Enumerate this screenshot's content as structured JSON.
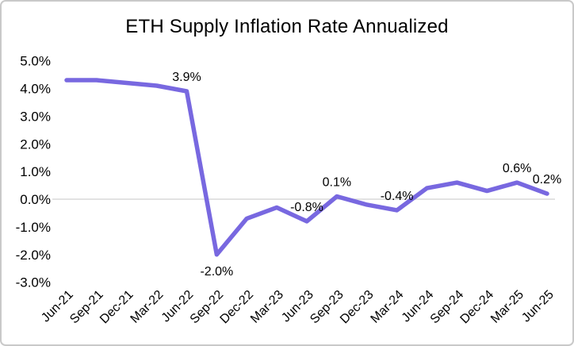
{
  "chart_data": {
    "type": "line",
    "title": "ETH Supply Inflation Rate Annualized",
    "xlabel": "",
    "ylabel": "",
    "unit": "%",
    "legend": "none",
    "grid": "zero-line-only",
    "ylim": [
      -3.0,
      5.0
    ],
    "y_ticks": [
      "5.0%",
      "4.0%",
      "3.0%",
      "2.0%",
      "1.0%",
      "0.0%",
      "-1.0%",
      "-2.0%",
      "-3.0%"
    ],
    "y_tick_values": [
      5.0,
      4.0,
      3.0,
      2.0,
      1.0,
      0.0,
      -1.0,
      -2.0,
      -3.0
    ],
    "categories": [
      "Jun-21",
      "Sep-21",
      "Dec-21",
      "Mar-22",
      "Jun-22",
      "Sep-22",
      "Dec-22",
      "Mar-23",
      "Jun-23",
      "Sep-23",
      "Dec-23",
      "Mar-24",
      "Jun-24",
      "Sep-24",
      "Dec-24",
      "Mar-25",
      "Jun-25"
    ],
    "series": [
      {
        "name": "ETH Supply Inflation Rate Annualized",
        "values": [
          4.3,
          4.3,
          4.2,
          4.1,
          3.9,
          -2.0,
          -0.7,
          -0.3,
          -0.8,
          0.1,
          -0.2,
          -0.4,
          0.4,
          0.6,
          0.3,
          0.6,
          0.2
        ]
      }
    ],
    "data_labels": [
      {
        "category": "Jun-22",
        "index": 4,
        "text": "3.9%",
        "placement": "above"
      },
      {
        "category": "Sep-22",
        "index": 5,
        "text": "-2.0%",
        "placement": "below"
      },
      {
        "category": "Jun-23",
        "index": 8,
        "text": "-0.8%",
        "placement": "above"
      },
      {
        "category": "Sep-23",
        "index": 9,
        "text": "0.1%",
        "placement": "above"
      },
      {
        "category": "Mar-24",
        "index": 11,
        "text": "-0.4%",
        "placement": "above"
      },
      {
        "category": "Mar-25",
        "index": 15,
        "text": "0.6%",
        "placement": "above"
      },
      {
        "category": "Jun-25",
        "index": 16,
        "text": "0.2%",
        "placement": "above"
      }
    ],
    "colors": {
      "line": "#7868E0",
      "zero_gridline": "#d9d9d9",
      "text": "#000000",
      "background": "#ffffff",
      "panel_border": "#c9c9c9"
    }
  }
}
